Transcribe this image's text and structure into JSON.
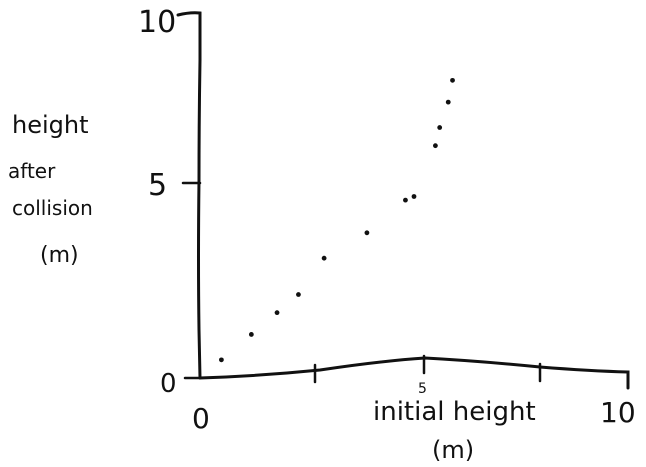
{
  "chart_data": {
    "type": "scatter",
    "title": "",
    "xlabel": [
      "initial height",
      "(m)"
    ],
    "ylabel": [
      "height",
      "after",
      "collision",
      "(m)"
    ],
    "xlim": [
      0,
      10
    ],
    "ylim": [
      0,
      10
    ],
    "x_tick_labels": [
      "0",
      "5",
      "10"
    ],
    "y_tick_labels": [
      "0",
      "5",
      "10"
    ],
    "grid": false,
    "series": [
      {
        "points": [
          {
            "x": 0.5,
            "y": 0.5
          },
          {
            "x": 1.2,
            "y": 1.2
          },
          {
            "x": 1.8,
            "y": 1.8
          },
          {
            "x": 2.3,
            "y": 2.3
          },
          {
            "x": 2.9,
            "y": 3.3
          },
          {
            "x": 3.9,
            "y": 4.0
          },
          {
            "x": 4.8,
            "y": 4.9
          },
          {
            "x": 5.0,
            "y": 5.0
          },
          {
            "x": 5.5,
            "y": 6.4
          },
          {
            "x": 5.6,
            "y": 6.9
          },
          {
            "x": 5.8,
            "y": 7.6
          },
          {
            "x": 5.9,
            "y": 8.2
          }
        ]
      }
    ]
  }
}
